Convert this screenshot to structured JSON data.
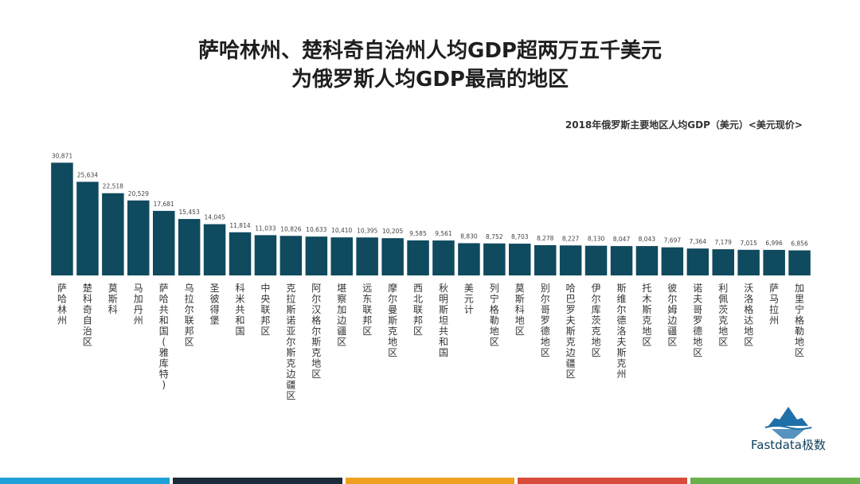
{
  "title_line1": "萨哈林州、楚科奇自治州人均GDP超两万五千美元",
  "title_line2": "为俄罗斯人均GDP最高的地区",
  "chart_data": {
    "type": "bar",
    "title": "2018年俄罗斯主要地区人均GDP（美元）<美元现价>",
    "categories": [
      "萨哈林州",
      "楚科奇自治区",
      "莫斯科",
      "马加丹州",
      "萨哈共和国(雅库特)",
      "乌拉尔联邦区",
      "圣彼得堡",
      "科米共和国",
      "中央联邦区",
      "克拉斯诺亚尔斯克边疆区",
      "阿尔汉格尔斯克地区",
      "堪察加边疆区",
      "远东联邦区",
      "摩尔曼斯克地区",
      "西北联邦区",
      "秋明斯坦共和国",
      "美元计",
      "列宁格勒地区",
      "莫斯科地区",
      "别尔哥罗德地区",
      "哈巴罗夫斯克边疆区",
      "伊尔库茨克地区",
      "斯维尔德洛夫斯克州",
      "托木斯克地区",
      "彼尔姆边疆区",
      "诺夫哥罗德地区",
      "利佩茨克地区",
      "沃洛格达地区",
      "萨马拉州",
      "加里宁格勒地区"
    ],
    "values": [
      30871,
      25634,
      22518,
      20529,
      17681,
      15453,
      14045,
      11814,
      11033,
      10826,
      10633,
      10410,
      10395,
      10205,
      9585,
      9561,
      8830,
      8752,
      8703,
      8278,
      8227,
      8130,
      8047,
      8043,
      7697,
      7364,
      7179,
      7015,
      6996,
      6856
    ],
    "value_labels": [
      "30,871",
      "25,634",
      "22,518",
      "20,529",
      "17,681",
      "15,453",
      "14,045",
      "11,814",
      "11,033",
      "10,826",
      "10,633",
      "10,410",
      "10,395",
      "10,205",
      "9,585",
      "9,561",
      "8,830",
      "8,752",
      "8,703",
      "8,278",
      "8,227",
      "8,130",
      "8,047",
      "8,043",
      "7,697",
      "7,364",
      "7,179",
      "7,015",
      "6,996",
      "6,856"
    ],
    "ylim": [
      0,
      34000
    ],
    "bar_color": "#0f4a5e",
    "grid": false,
    "legend": "none"
  },
  "logo": {
    "text": "Fastdata极数",
    "icon": "iceberg-logo-icon",
    "color": "#1f6fa8"
  },
  "bottom_strip_colors": [
    "#1fa0d8",
    "#1c2b3a",
    "#f0a020",
    "#d84a3a",
    "#6ab04c"
  ]
}
